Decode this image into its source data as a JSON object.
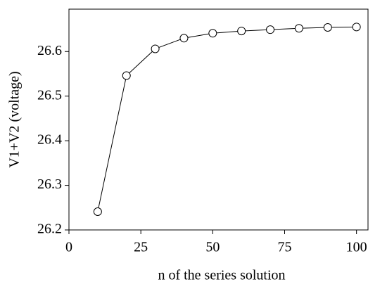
{
  "chart_data": {
    "type": "line",
    "x_label": "n of the series solution",
    "y_label": "V1+V2 (voltage)",
    "x": [
      10,
      20,
      30,
      40,
      50,
      60,
      70,
      80,
      90,
      100
    ],
    "series": [
      {
        "name": "V1+V2",
        "color": "#000000",
        "values": [
          26.241,
          26.546,
          26.606,
          26.63,
          26.641,
          26.646,
          26.649,
          26.652,
          26.654,
          26.655
        ]
      }
    ],
    "xlim": [
      0,
      104
    ],
    "xticks": [
      0,
      25,
      50,
      75,
      100
    ],
    "ylim": [
      26.2,
      26.695
    ],
    "yticks": [
      26.2,
      26.3,
      26.4,
      26.5,
      26.6
    ],
    "marker": "open-circle"
  }
}
